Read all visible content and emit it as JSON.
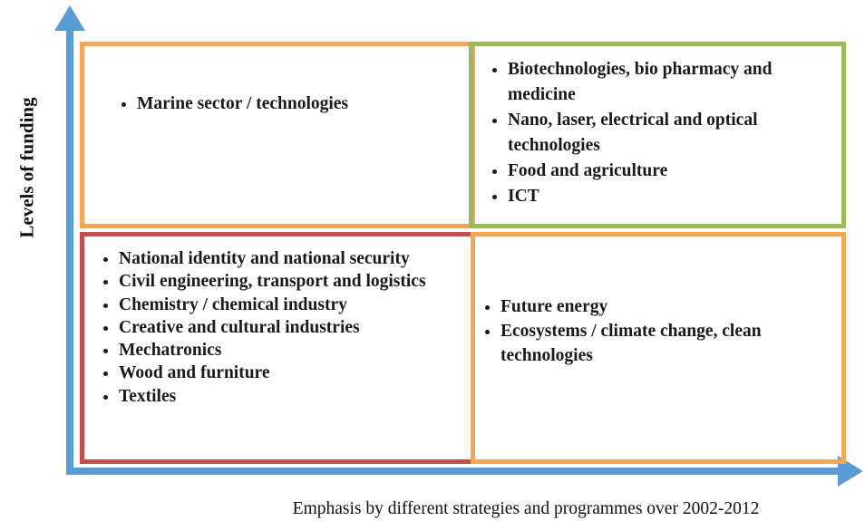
{
  "axes": {
    "y_label": "Levels of funding",
    "x_label": "Emphasis by different strategies and programmes over 2002-2012"
  },
  "quadrants": [
    {
      "position": "top-left",
      "items": [
        "Marine sector / technologies"
      ]
    },
    {
      "position": "top-right",
      "items": [
        "Biotechnologies, bio pharmacy and medicine",
        "Nano, laser, electrical and optical technologies",
        "Food and agriculture",
        "ICT"
      ]
    },
    {
      "position": "bottom-left",
      "items": [
        "National identity and national security",
        "Civil engineering, transport and logistics",
        "Chemistry / chemical industry",
        "Creative and cultural industries",
        "Mechatronics",
        "Wood and furniture",
        "Textiles"
      ]
    },
    {
      "position": "bottom-right",
      "items": [
        "Future energy",
        "Ecosystems / climate change, clean technologies"
      ]
    }
  ]
}
